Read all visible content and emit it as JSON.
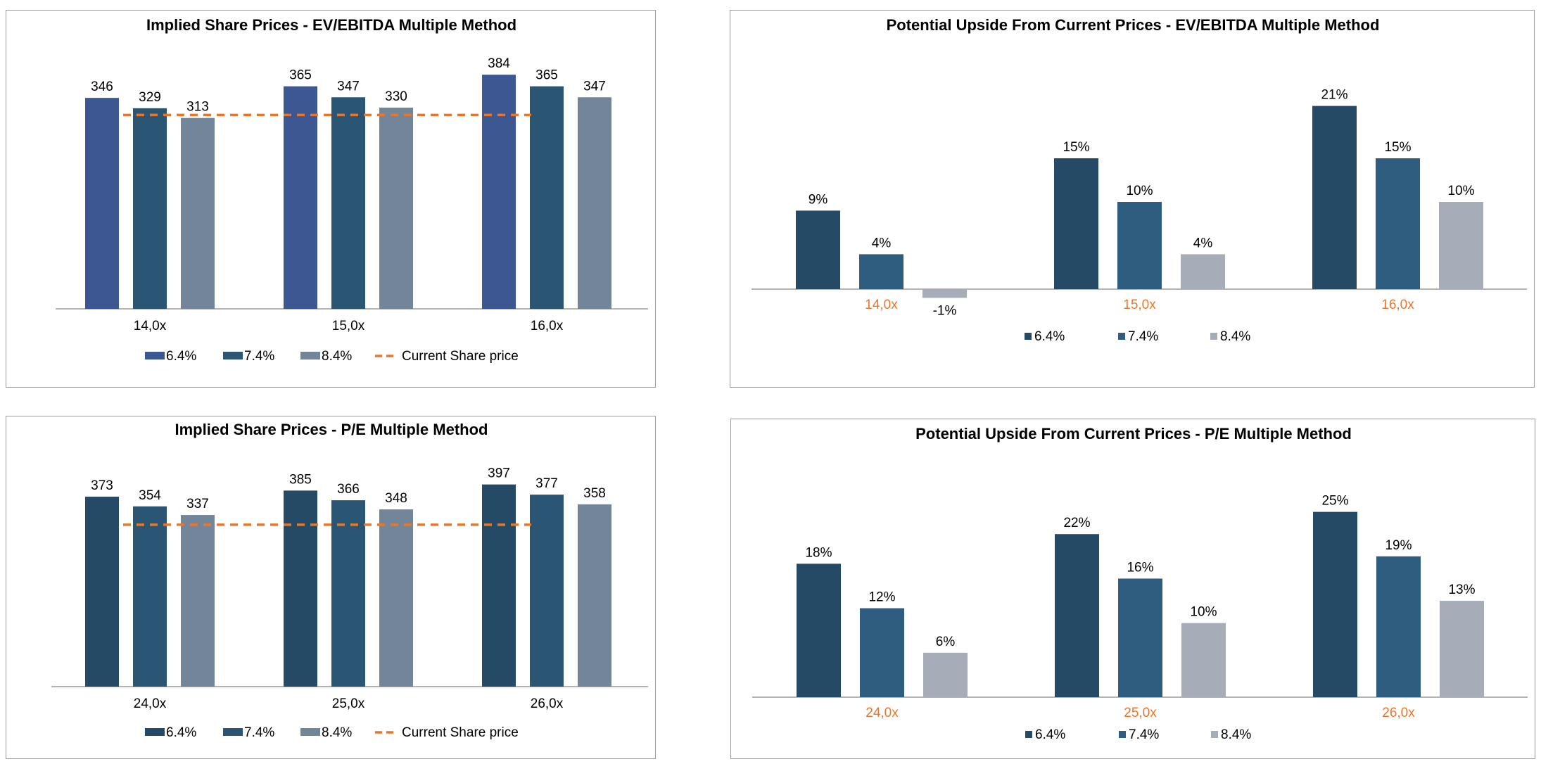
{
  "chart_data": [
    {
      "type": "bar",
      "title": "Implied Share Prices - EV/EBITDA Multiple Method",
      "categories": [
        "14,0x",
        "15,0x",
        "16,0x"
      ],
      "series": [
        {
          "name": "6.4%",
          "values": [
            346,
            365,
            384
          ],
          "color": "#3d5793"
        },
        {
          "name": "7.4%",
          "values": [
            329,
            347,
            365
          ],
          "color": "#2a5674"
        },
        {
          "name": "8.4%",
          "values": [
            313,
            330,
            347
          ],
          "color": "#728599"
        }
      ],
      "reference_line": {
        "name": "Current Share price",
        "value": 318,
        "color": "#e8772e"
      },
      "ylim": [
        0,
        420
      ],
      "legend": [
        "6.4%",
        "7.4%",
        "8.4%",
        "Current Share price"
      ],
      "category_color": "#000000"
    },
    {
      "type": "bar",
      "title": "Potential Upside From Current Prices - EV/EBITDA Multiple Method",
      "categories": [
        "14,0x",
        "15,0x",
        "16,0x"
      ],
      "series": [
        {
          "name": "6.4%",
          "values": [
            9,
            15,
            21
          ],
          "labels": [
            "9%",
            "15%",
            "21%"
          ],
          "color": "#254a66"
        },
        {
          "name": "7.4%",
          "values": [
            4,
            10,
            15
          ],
          "labels": [
            "4%",
            "10%",
            "15%"
          ],
          "color": "#2e5d80"
        },
        {
          "name": "8.4%",
          "values": [
            -1,
            4,
            10
          ],
          "labels": [
            "-1%",
            "4%",
            "10%"
          ],
          "color": "#a6adb8"
        }
      ],
      "ylim": [
        -5,
        25
      ],
      "legend": [
        "6.4%",
        "7.4%",
        "8.4%"
      ],
      "category_color": "#e8772e"
    },
    {
      "type": "bar",
      "title": "Implied Share Prices - P/E Multiple Method",
      "categories": [
        "24,0x",
        "25,0x",
        "26,0x"
      ],
      "series": [
        {
          "name": "6.4%",
          "values": [
            373,
            385,
            397
          ],
          "color": "#254a66"
        },
        {
          "name": "7.4%",
          "values": [
            354,
            366,
            377
          ],
          "color": "#2a5674"
        },
        {
          "name": "8.4%",
          "values": [
            337,
            348,
            358
          ],
          "color": "#728599"
        }
      ],
      "reference_line": {
        "name": "Current Share price",
        "value": 318,
        "color": "#e8772e"
      },
      "ylim": [
        0,
        420
      ],
      "legend": [
        "6.4%",
        "7.4%",
        "8.4%",
        "Current Share price"
      ],
      "category_color": "#000000"
    },
    {
      "type": "bar",
      "title": "Potential Upside From Current Prices - P/E Multiple Method",
      "categories": [
        "24,0x",
        "25,0x",
        "26,0x"
      ],
      "series": [
        {
          "name": "6.4%",
          "values": [
            18,
            22,
            25
          ],
          "labels": [
            "18%",
            "22%",
            "25%"
          ],
          "color": "#254a66"
        },
        {
          "name": "7.4%",
          "values": [
            12,
            16,
            19
          ],
          "labels": [
            "12%",
            "16%",
            "19%"
          ],
          "color": "#2e5d80"
        },
        {
          "name": "8.4%",
          "values": [
            6,
            10,
            13
          ],
          "labels": [
            "6%",
            "10%",
            "13%"
          ],
          "color": "#a6adb8"
        }
      ],
      "ylim": [
        0,
        28
      ],
      "legend": [
        "6.4%",
        "7.4%",
        "8.4%"
      ],
      "category_color": "#e8772e"
    }
  ]
}
